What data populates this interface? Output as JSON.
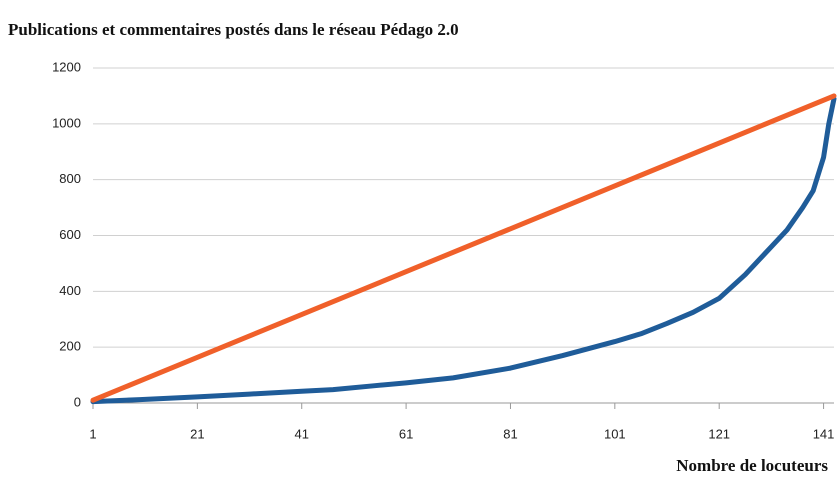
{
  "chart_data": {
    "type": "line",
    "title": "Publications et commentaires postés dans le réseau Pédago 2.0",
    "x_label": "Nombre de locuteurs",
    "xlim": [
      1,
      143
    ],
    "xticks": [
      1,
      21,
      41,
      61,
      81,
      101,
      121,
      141
    ],
    "ylim": [
      0,
      1200
    ],
    "yticks": [
      0,
      200,
      400,
      600,
      800,
      1000,
      1200
    ],
    "grid": true,
    "series": [
      {
        "color": "#1f5c99",
        "x": [
          1,
          10,
          21,
          31,
          41,
          47,
          55,
          61,
          70,
          81,
          91,
          101,
          106,
          111,
          116,
          121,
          126,
          131,
          134,
          137,
          139,
          141,
          142,
          143
        ],
        "values": [
          5,
          12,
          22,
          32,
          42,
          48,
          62,
          72,
          90,
          125,
          170,
          220,
          248,
          285,
          325,
          375,
          460,
          560,
          620,
          700,
          760,
          880,
          1000,
          1090
        ]
      },
      {
        "color": "#f0602a",
        "x": [
          1,
          143
        ],
        "values": [
          10,
          1100
        ]
      }
    ]
  }
}
